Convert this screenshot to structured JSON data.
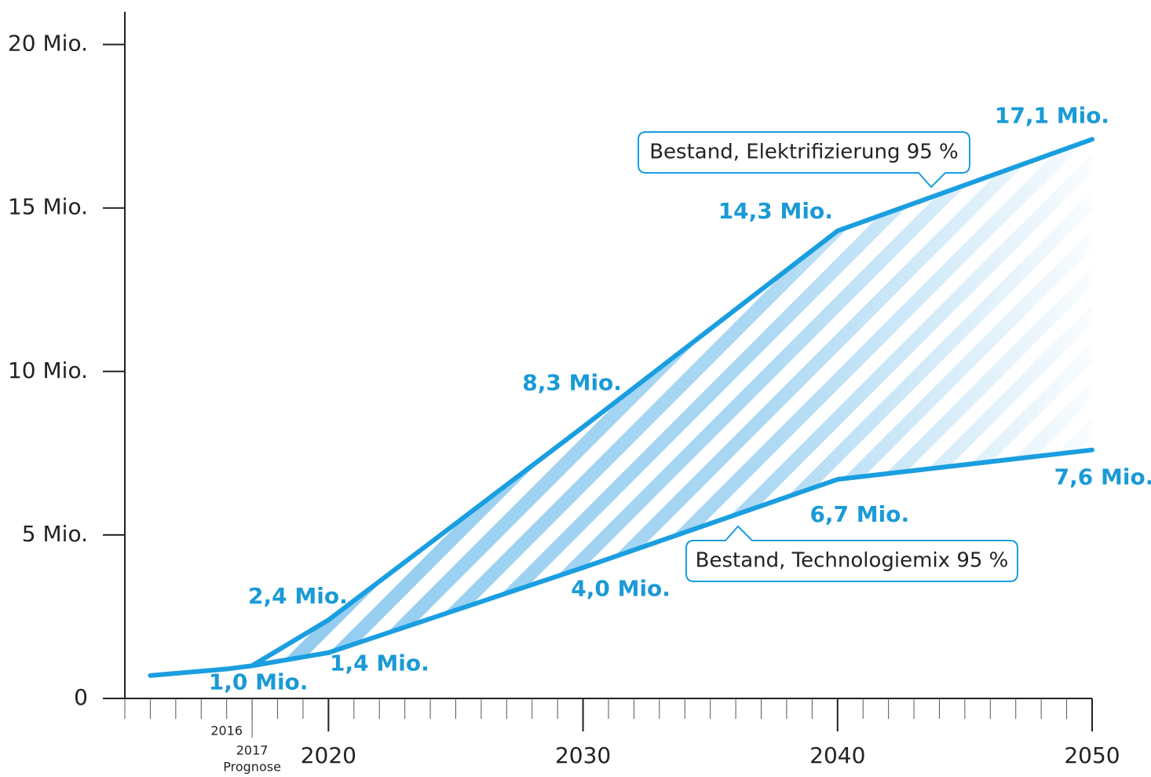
{
  "chart_data": {
    "type": "line",
    "color": "#1a9ee0",
    "xlim": [
      2012,
      2050
    ],
    "xticks": [
      2020,
      2030,
      2040,
      2050
    ],
    "xminor_step": 1,
    "ylim": [
      0,
      21
    ],
    "yticks": [
      0,
      {
        "value": 5,
        "label": "5 Mio."
      },
      {
        "value": 10,
        "label": "10 Mio."
      },
      {
        "value": 15,
        "label": "15 Mio."
      },
      {
        "value": 20,
        "label": "20 Mio."
      }
    ],
    "annotations": [
      {
        "x": 2016,
        "text": "2016"
      },
      {
        "x": 2017,
        "text": "2017"
      },
      {
        "x": 2017,
        "text": "Prognose"
      }
    ],
    "series": [
      {
        "x": [
          2013,
          2016,
          2017
        ],
        "values": [
          0.7,
          0.9,
          1.0
        ],
        "value_labels": [
          null,
          null,
          "1,0 Mio."
        ]
      },
      {
        "name": "Bestand, Elektrifizierung 95 %",
        "x": [
          2017,
          2020,
          2030,
          2040,
          2050
        ],
        "values": [
          1.0,
          2.4,
          8.3,
          14.3,
          17.1
        ],
        "value_labels": [
          null,
          "2,4 Mio.",
          "8,3 Mio.",
          "14,3 Mio.",
          "17,1 Mio."
        ]
      },
      {
        "name": "Bestand, Technologiemix 95 %",
        "x": [
          2017,
          2020,
          2030,
          2040,
          2050
        ],
        "values": [
          1.0,
          1.4,
          4.0,
          6.7,
          7.6
        ],
        "value_labels": [
          null,
          "1,4 Mio.",
          "4,0 Mio.",
          "6,7 Mio.",
          "7,6 Mio."
        ]
      }
    ]
  }
}
